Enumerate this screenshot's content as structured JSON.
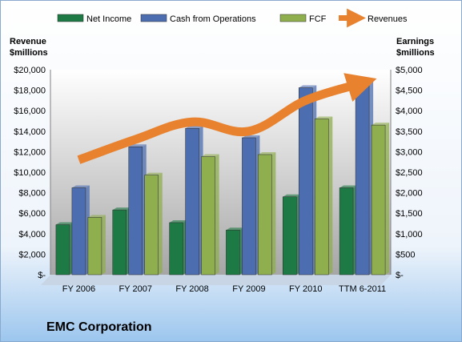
{
  "chart_data": {
    "type": "bar",
    "company": "EMC Corporation",
    "categories": [
      "FY 2006",
      "FY 2007",
      "FY 2008",
      "FY 2009",
      "FY 2010",
      "TTM 6-2011"
    ],
    "left_axis_label_line1": "Revenue",
    "left_axis_label_line2": "$millions",
    "right_axis_label_line1": "Earnings",
    "right_axis_label_line2": "$millions",
    "left_ylim": [
      0,
      20000
    ],
    "right_ylim": [
      0,
      5000
    ],
    "left_ticks": [
      "$-",
      "$2,000",
      "$4,000",
      "$6,000",
      "$8,000",
      "$10,000",
      "$12,000",
      "$14,000",
      "$16,000",
      "$18,000",
      "$20,000"
    ],
    "right_ticks": [
      "$-",
      "$500",
      "$1,000",
      "$1,500",
      "$2,000",
      "$2,500",
      "$3,000",
      "$3,500",
      "$4,000",
      "$4,500",
      "$5,000"
    ],
    "legend_position": "top",
    "grid": false,
    "series": [
      {
        "name": "Net Income",
        "axis": "right",
        "kind": "bar",
        "color": "#1E7A45",
        "values": [
          1220,
          1580,
          1270,
          1090,
          1900,
          2120
        ]
      },
      {
        "name": "Cash from Operations",
        "axis": "right",
        "kind": "bar",
        "color": "#4C6DB0",
        "values": [
          2120,
          3120,
          3570,
          3340,
          4560,
          4680
        ]
      },
      {
        "name": "FCF",
        "axis": "right",
        "kind": "bar",
        "color": "#8FAE4E",
        "values": [
          1400,
          2430,
          2880,
          2930,
          3800,
          3650
        ]
      },
      {
        "name": "Revenues",
        "axis": "left",
        "kind": "line",
        "color": "#E8822F",
        "values": [
          11200,
          13200,
          14900,
          14000,
          17000,
          18700
        ]
      }
    ]
  }
}
